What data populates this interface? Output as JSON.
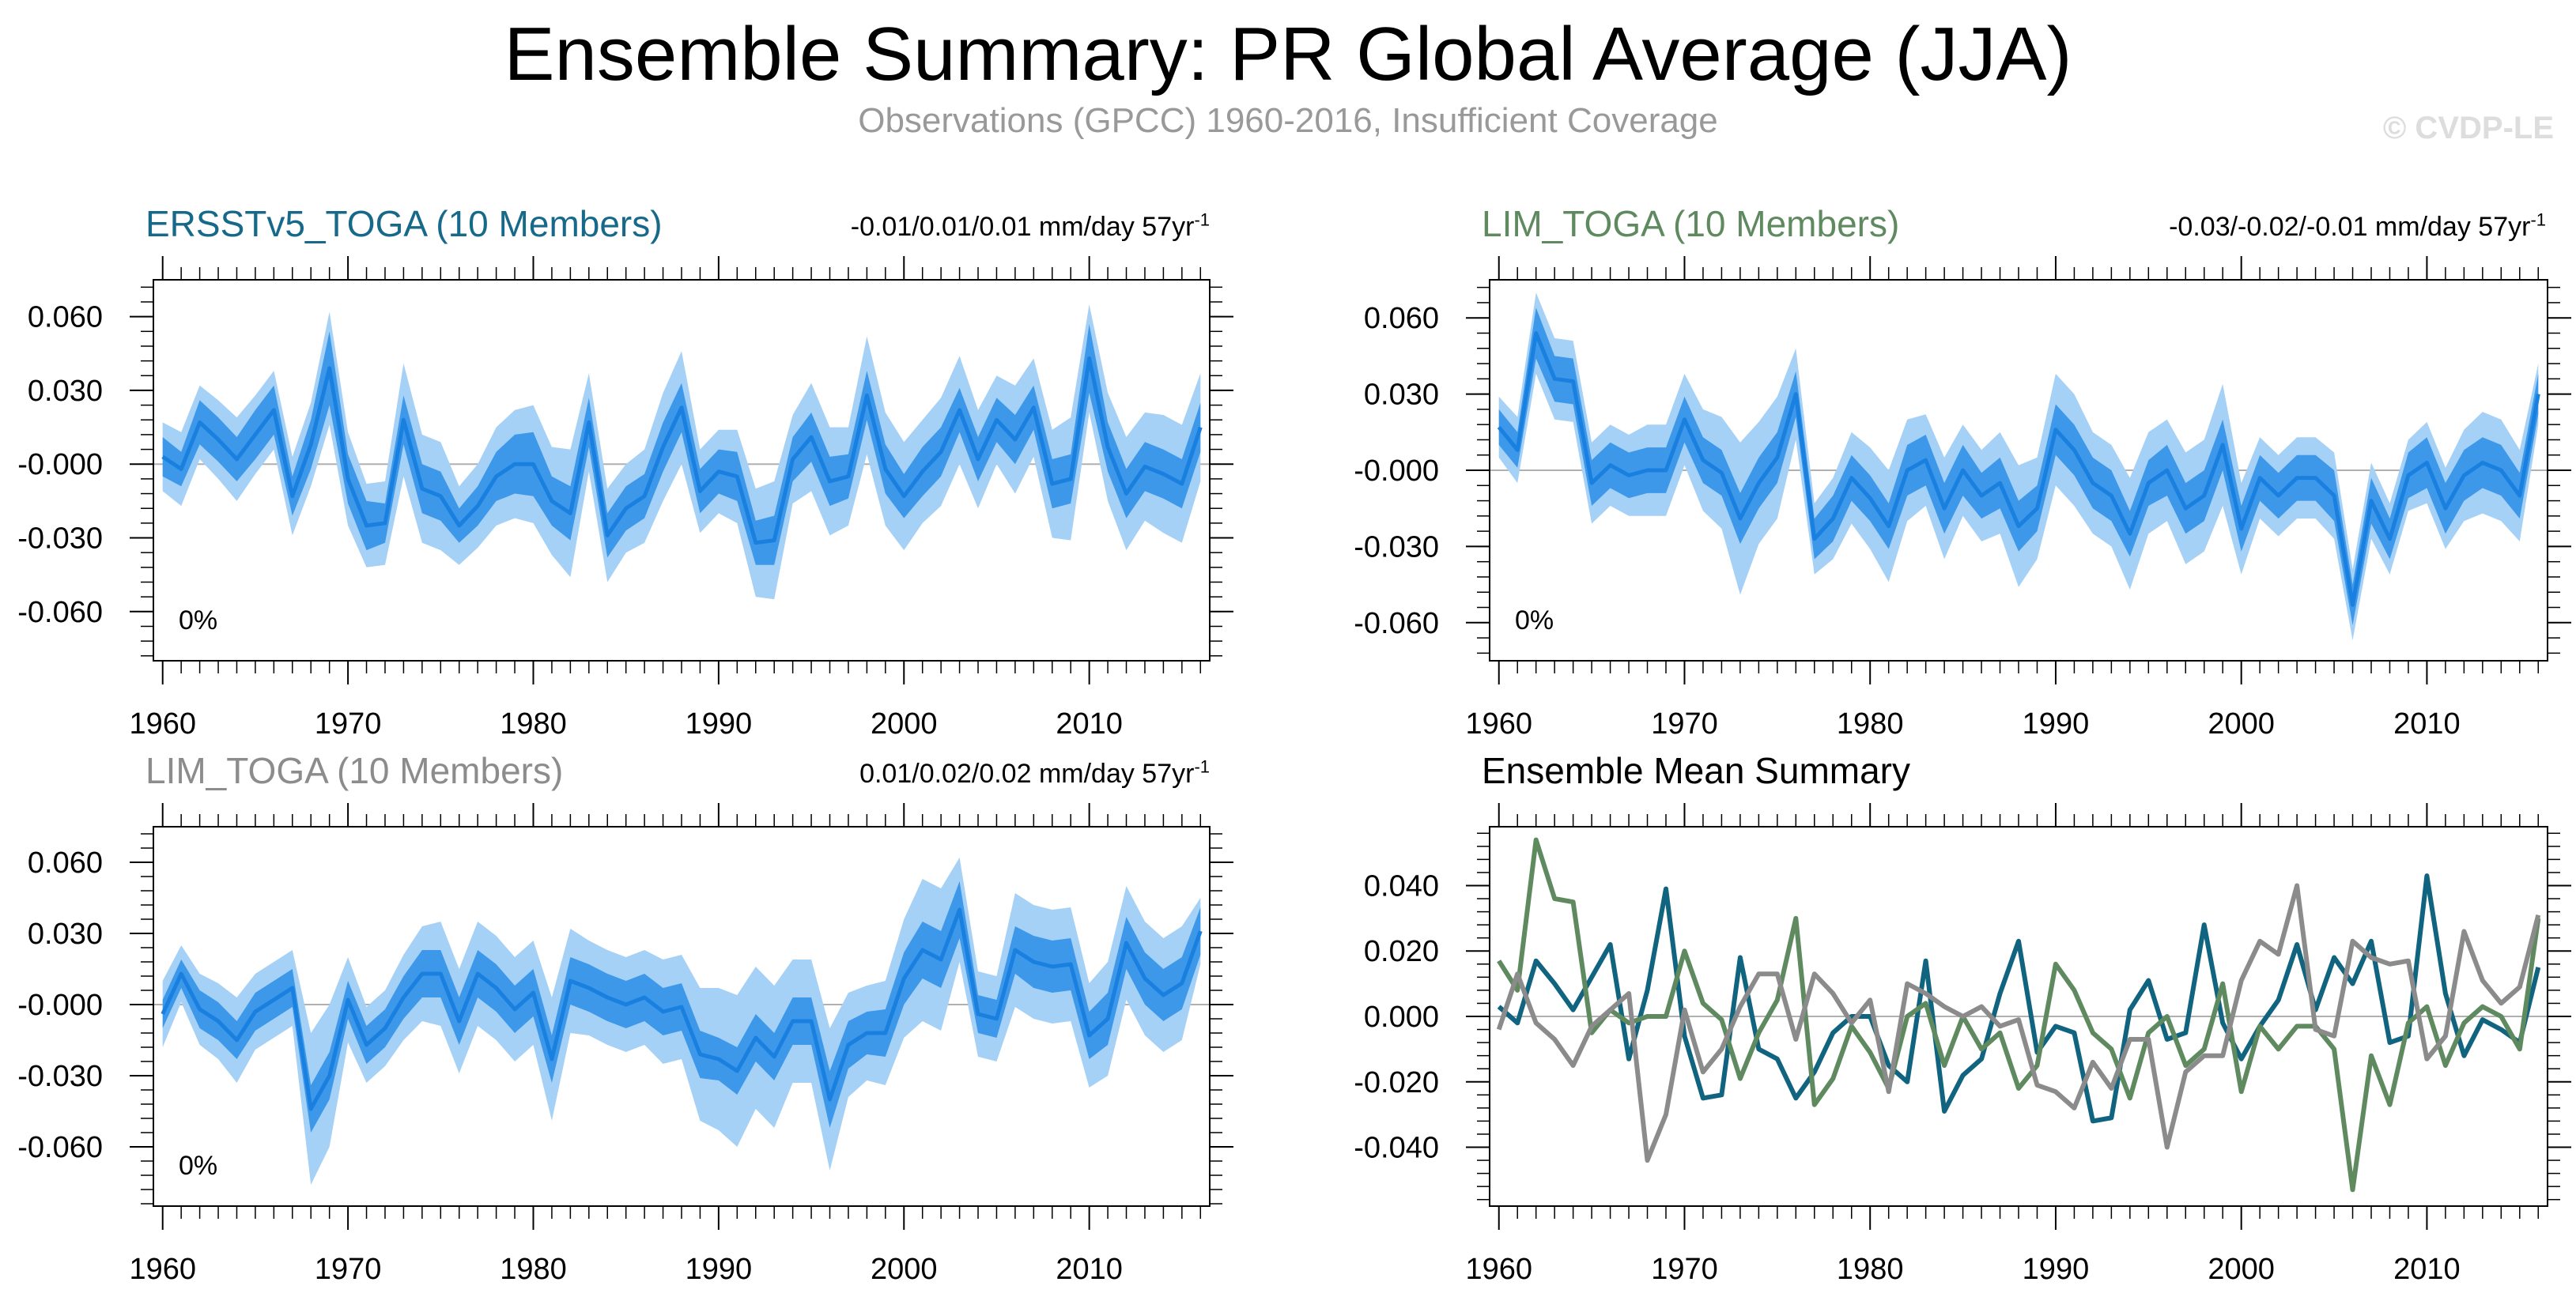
{
  "title": "Ensemble Summary: PR Global Average (JJA)",
  "subtitle": "Observations (GPCC) 1960-2016, Insufficient Coverage",
  "copyright": "© CVDP-LE",
  "colors": {
    "band_outer": "#a6d1f7",
    "band_inner": "#3d98ea",
    "mean_line": "#1a80e0",
    "series_ersst": "#11647f",
    "series_lim": "#5f8a60",
    "series_lim2": "#8b8b8b"
  },
  "panels": [
    {
      "title": "ERSSTv5_TOGA (10 Members)",
      "title_color": "#17698a",
      "trend_text": "-0.01/0.01/0.01 mm/day 57yr",
      "trend_exp": "-1",
      "pct_text": "0%"
    },
    {
      "title": "LIM_TOGA (10 Members)",
      "title_color": "#5f8a60",
      "trend_text": "-0.03/-0.02/-0.01 mm/day 57yr",
      "trend_exp": "-1",
      "pct_text": "0%"
    },
    {
      "title": "LIM_TOGA (10 Members)",
      "title_color": "#8c8c8c",
      "trend_text": "0.01/0.02/0.02 mm/day 57yr",
      "trend_exp": "-1",
      "pct_text": "0%"
    },
    {
      "title": "Ensemble Mean Summary",
      "title_color": "#000000"
    }
  ],
  "chart_data": [
    {
      "type": "area",
      "title": "ERSSTv5_TOGA (10 Members)",
      "x_start": 1960,
      "xlim": [
        1959.5,
        2016.5
      ],
      "ylim": [
        -0.08,
        0.075
      ],
      "xticks": [
        1960,
        1970,
        1980,
        1990,
        2000,
        2010
      ],
      "yticks": [
        0.06,
        0.03,
        0.0,
        -0.03,
        -0.06
      ],
      "ytick_labels": [
        "0.060",
        "0.030",
        "-0.000",
        "-0.030",
        "-0.060"
      ],
      "mean": [
        0.003,
        -0.002,
        0.017,
        0.01,
        0.002,
        0.012,
        0.022,
        -0.013,
        0.008,
        0.039,
        -0.006,
        -0.025,
        -0.024,
        0.018,
        -0.01,
        -0.013,
        -0.025,
        -0.017,
        -0.005,
        0.0,
        0.0,
        -0.015,
        -0.02,
        0.017,
        -0.029,
        -0.018,
        -0.013,
        0.007,
        0.023,
        -0.011,
        -0.003,
        -0.005,
        -0.032,
        -0.031,
        0.002,
        0.011,
        -0.007,
        -0.005,
        0.028,
        -0.002,
        -0.013,
        -0.003,
        0.005,
        0.022,
        0.002,
        0.018,
        0.01,
        0.023,
        -0.008,
        -0.006,
        0.043,
        0.007,
        -0.012,
        -0.001,
        -0.004,
        -0.008,
        0.015
      ],
      "inner_hw": [
        0.008,
        0.007,
        0.009,
        0.009,
        0.009,
        0.01,
        0.01,
        0.008,
        0.01,
        0.015,
        0.01,
        0.01,
        0.008,
        0.01,
        0.01,
        0.01,
        0.007,
        0.008,
        0.01,
        0.012,
        0.013,
        0.01,
        0.011,
        0.01,
        0.009,
        0.009,
        0.009,
        0.01,
        0.01,
        0.009,
        0.009,
        0.01,
        0.009,
        0.01,
        0.009,
        0.01,
        0.01,
        0.009,
        0.01,
        0.01,
        0.009,
        0.01,
        0.01,
        0.009,
        0.009,
        0.009,
        0.01,
        0.009,
        0.01,
        0.01,
        0.014,
        0.01,
        0.01,
        0.01,
        0.01,
        0.01,
        0.01
      ],
      "outer_hw": [
        0.014,
        0.015,
        0.015,
        0.016,
        0.017,
        0.016,
        0.016,
        0.016,
        0.017,
        0.023,
        0.019,
        0.017,
        0.017,
        0.023,
        0.022,
        0.022,
        0.016,
        0.017,
        0.02,
        0.022,
        0.024,
        0.022,
        0.026,
        0.02,
        0.019,
        0.018,
        0.019,
        0.022,
        0.023,
        0.017,
        0.017,
        0.019,
        0.022,
        0.024,
        0.018,
        0.022,
        0.022,
        0.02,
        0.024,
        0.023,
        0.022,
        0.021,
        0.022,
        0.022,
        0.02,
        0.018,
        0.022,
        0.02,
        0.022,
        0.025,
        0.022,
        0.022,
        0.023,
        0.022,
        0.024,
        0.024,
        0.022
      ]
    },
    {
      "type": "area",
      "title": "LIM_TOGA (10 Members)",
      "x_start": 1960,
      "xlim": [
        1959.5,
        2016.5
      ],
      "ylim": [
        -0.075,
        0.075
      ],
      "xticks": [
        1960,
        1970,
        1980,
        1990,
        2000,
        2010
      ],
      "yticks": [
        0.06,
        0.03,
        0.0,
        -0.03,
        -0.06
      ],
      "ytick_labels": [
        "0.060",
        "0.030",
        "-0.000",
        "-0.030",
        "-0.060"
      ],
      "mean": [
        0.017,
        0.008,
        0.054,
        0.036,
        0.035,
        -0.005,
        0.002,
        -0.002,
        0.0,
        0.0,
        0.02,
        0.004,
        -0.001,
        -0.019,
        -0.005,
        0.005,
        0.03,
        -0.027,
        -0.019,
        -0.003,
        -0.011,
        -0.022,
        0.0,
        0.004,
        -0.015,
        0.0,
        -0.01,
        -0.005,
        -0.022,
        -0.015,
        0.016,
        0.008,
        -0.005,
        -0.01,
        -0.025,
        -0.005,
        0.0,
        -0.015,
        -0.01,
        0.01,
        -0.023,
        -0.003,
        -0.01,
        -0.003,
        -0.003,
        -0.01,
        -0.053,
        -0.012,
        -0.027,
        -0.002,
        0.003,
        -0.015,
        -0.002,
        0.003,
        0.0,
        -0.01,
        0.03
      ],
      "inner_hw": [
        0.007,
        0.007,
        0.01,
        0.009,
        0.009,
        0.009,
        0.009,
        0.009,
        0.009,
        0.009,
        0.009,
        0.009,
        0.009,
        0.01,
        0.01,
        0.01,
        0.009,
        0.008,
        0.009,
        0.009,
        0.009,
        0.009,
        0.01,
        0.01,
        0.01,
        0.01,
        0.009,
        0.01,
        0.01,
        0.009,
        0.01,
        0.01,
        0.01,
        0.01,
        0.009,
        0.009,
        0.01,
        0.01,
        0.01,
        0.01,
        0.009,
        0.009,
        0.009,
        0.009,
        0.009,
        0.01,
        0.008,
        0.009,
        0.008,
        0.009,
        0.01,
        0.01,
        0.01,
        0.01,
        0.01,
        0.009,
        0.008
      ],
      "outer_hw": [
        0.012,
        0.013,
        0.016,
        0.016,
        0.016,
        0.016,
        0.016,
        0.016,
        0.018,
        0.018,
        0.018,
        0.02,
        0.022,
        0.03,
        0.024,
        0.024,
        0.018,
        0.014,
        0.016,
        0.018,
        0.02,
        0.022,
        0.02,
        0.018,
        0.02,
        0.018,
        0.018,
        0.02,
        0.024,
        0.02,
        0.022,
        0.022,
        0.02,
        0.02,
        0.022,
        0.02,
        0.02,
        0.022,
        0.022,
        0.024,
        0.018,
        0.016,
        0.016,
        0.016,
        0.016,
        0.017,
        0.014,
        0.015,
        0.014,
        0.014,
        0.016,
        0.016,
        0.018,
        0.02,
        0.02,
        0.018,
        0.012
      ]
    },
    {
      "type": "area",
      "title": "LIM_TOGA (10 Members)",
      "x_start": 1960,
      "xlim": [
        1959.5,
        2016.5
      ],
      "ylim": [
        -0.085,
        0.075
      ],
      "xticks": [
        1960,
        1970,
        1980,
        1990,
        2000,
        2010
      ],
      "yticks": [
        0.06,
        0.03,
        0.0,
        -0.03,
        -0.06
      ],
      "ytick_labels": [
        "0.060",
        "0.030",
        "-0.000",
        "-0.030",
        "-0.060"
      ],
      "mean": [
        -0.004,
        0.013,
        -0.002,
        -0.007,
        -0.015,
        -0.003,
        0.002,
        0.007,
        -0.044,
        -0.03,
        0.002,
        -0.017,
        -0.01,
        0.003,
        0.013,
        0.013,
        -0.007,
        0.013,
        0.007,
        -0.002,
        0.005,
        -0.023,
        0.01,
        0.007,
        0.003,
        0.0,
        0.003,
        -0.003,
        -0.001,
        -0.021,
        -0.023,
        -0.028,
        -0.014,
        -0.022,
        -0.007,
        -0.007,
        -0.04,
        -0.017,
        -0.012,
        -0.012,
        0.011,
        0.023,
        0.019,
        0.04,
        -0.004,
        -0.006,
        0.023,
        0.018,
        0.016,
        0.017,
        -0.013,
        -0.006,
        0.026,
        0.011,
        0.004,
        0.009,
        0.031
      ],
      "inner_hw": [
        0.006,
        0.006,
        0.008,
        0.008,
        0.008,
        0.008,
        0.008,
        0.008,
        0.01,
        0.01,
        0.008,
        0.008,
        0.008,
        0.009,
        0.01,
        0.01,
        0.01,
        0.01,
        0.01,
        0.01,
        0.01,
        0.01,
        0.01,
        0.01,
        0.01,
        0.01,
        0.01,
        0.01,
        0.01,
        0.01,
        0.009,
        0.01,
        0.01,
        0.01,
        0.01,
        0.01,
        0.012,
        0.01,
        0.009,
        0.01,
        0.011,
        0.012,
        0.012,
        0.012,
        0.008,
        0.008,
        0.01,
        0.011,
        0.011,
        0.011,
        0.01,
        0.011,
        0.011,
        0.011,
        0.011,
        0.011,
        0.01
      ],
      "outer_hw": [
        0.014,
        0.012,
        0.015,
        0.016,
        0.018,
        0.016,
        0.016,
        0.016,
        0.032,
        0.03,
        0.018,
        0.016,
        0.016,
        0.018,
        0.02,
        0.022,
        0.022,
        0.022,
        0.022,
        0.022,
        0.022,
        0.026,
        0.022,
        0.02,
        0.02,
        0.02,
        0.02,
        0.022,
        0.022,
        0.028,
        0.03,
        0.032,
        0.03,
        0.03,
        0.026,
        0.026,
        0.03,
        0.022,
        0.02,
        0.022,
        0.025,
        0.03,
        0.03,
        0.022,
        0.018,
        0.018,
        0.024,
        0.024,
        0.024,
        0.024,
        0.022,
        0.024,
        0.024,
        0.024,
        0.024,
        0.024,
        0.014
      ]
    },
    {
      "type": "line",
      "title": "Ensemble Mean Summary",
      "x_start": 1960,
      "xlim": [
        1959.5,
        2016.5
      ],
      "ylim": [
        -0.058,
        0.058
      ],
      "xticks": [
        1960,
        1970,
        1980,
        1990,
        2000,
        2010
      ],
      "yticks": [
        0.04,
        0.02,
        0.0,
        -0.02,
        -0.04
      ],
      "ytick_labels": [
        "0.040",
        "0.020",
        "0.000",
        "-0.020",
        "-0.040"
      ],
      "series": [
        {
          "name": "ERSSTv5_TOGA",
          "color": "#11647f",
          "values": [
            0.003,
            -0.002,
            0.017,
            0.01,
            0.002,
            0.012,
            0.022,
            -0.013,
            0.008,
            0.039,
            -0.006,
            -0.025,
            -0.024,
            0.018,
            -0.01,
            -0.013,
            -0.025,
            -0.017,
            -0.005,
            0.0,
            0.0,
            -0.015,
            -0.02,
            0.017,
            -0.029,
            -0.018,
            -0.013,
            0.007,
            0.023,
            -0.011,
            -0.003,
            -0.005,
            -0.032,
            -0.031,
            0.002,
            0.011,
            -0.007,
            -0.005,
            0.028,
            -0.002,
            -0.013,
            -0.003,
            0.005,
            0.022,
            0.002,
            0.018,
            0.01,
            0.023,
            -0.008,
            -0.006,
            0.043,
            0.007,
            -0.012,
            -0.001,
            -0.004,
            -0.008,
            0.015
          ]
        },
        {
          "name": "LIM_TOGA",
          "color": "#5f8a60",
          "values": [
            0.017,
            0.008,
            0.054,
            0.036,
            0.035,
            -0.005,
            0.002,
            -0.002,
            0.0,
            0.0,
            0.02,
            0.004,
            -0.001,
            -0.019,
            -0.005,
            0.005,
            0.03,
            -0.027,
            -0.019,
            -0.003,
            -0.011,
            -0.022,
            0.0,
            0.004,
            -0.015,
            0.0,
            -0.01,
            -0.005,
            -0.022,
            -0.015,
            0.016,
            0.008,
            -0.005,
            -0.01,
            -0.025,
            -0.005,
            0.0,
            -0.015,
            -0.01,
            0.01,
            -0.023,
            -0.003,
            -0.01,
            -0.003,
            -0.003,
            -0.01,
            -0.053,
            -0.012,
            -0.027,
            -0.002,
            0.003,
            -0.015,
            -0.002,
            0.003,
            0.0,
            -0.01,
            0.03
          ]
        },
        {
          "name": "LIM_TOGA",
          "color": "#8b8b8b",
          "values": [
            -0.004,
            0.013,
            -0.002,
            -0.007,
            -0.015,
            -0.003,
            0.002,
            0.007,
            -0.044,
            -0.03,
            0.002,
            -0.017,
            -0.01,
            0.003,
            0.013,
            0.013,
            -0.007,
            0.013,
            0.007,
            -0.002,
            0.005,
            -0.023,
            0.01,
            0.007,
            0.003,
            0.0,
            0.003,
            -0.003,
            -0.001,
            -0.021,
            -0.023,
            -0.028,
            -0.014,
            -0.022,
            -0.007,
            -0.007,
            -0.04,
            -0.017,
            -0.012,
            -0.012,
            0.011,
            0.023,
            0.019,
            0.04,
            -0.004,
            -0.006,
            0.023,
            0.018,
            0.016,
            0.017,
            -0.013,
            -0.006,
            0.026,
            0.011,
            0.004,
            0.009,
            0.031
          ]
        }
      ]
    }
  ]
}
